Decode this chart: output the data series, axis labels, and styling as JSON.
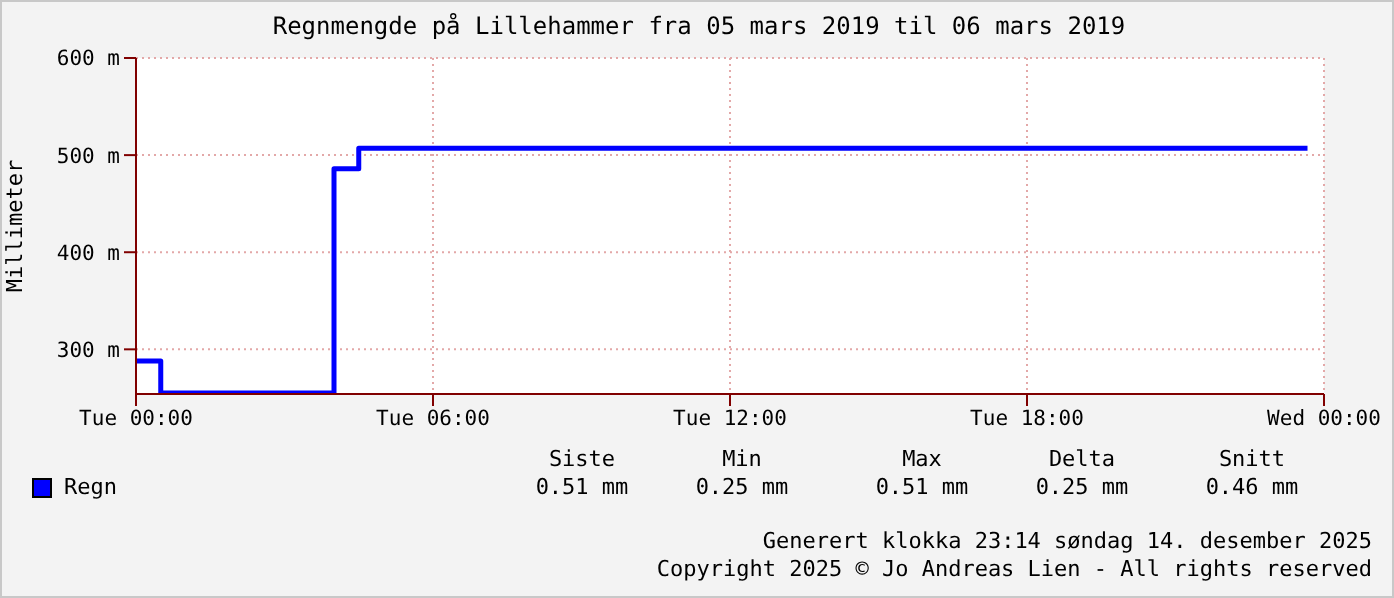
{
  "chart_data": {
    "type": "step",
    "title": "Regnmengde på Lillehammer fra 05 mars 2019 til 06 mars 2019",
    "ylabel": "Millimeter",
    "x": [
      "2019-03-05T00:00",
      "2019-03-05T00:30",
      "2019-03-05T04:00",
      "2019-03-05T04:30",
      "2019-03-05T23:40"
    ],
    "series": [
      {
        "name": "Regn",
        "color": "#0000ff",
        "values": [
          288,
          255,
          486,
          507,
          507
        ]
      }
    ],
    "xlim": [
      "2019-03-05T00:00",
      "2019-03-06T00:00"
    ],
    "xticks": [
      {
        "value": "2019-03-05T00:00",
        "label": "Tue 00:00"
      },
      {
        "value": "2019-03-05T06:00",
        "label": "Tue 06:00"
      },
      {
        "value": "2019-03-05T12:00",
        "label": "Tue 12:00"
      },
      {
        "value": "2019-03-05T18:00",
        "label": "Tue 18:00"
      },
      {
        "value": "2019-03-06T00:00",
        "label": "Wed 00:00"
      }
    ],
    "ylim": [
      254,
      600
    ],
    "yticks": [
      {
        "value": 300,
        "label": "300 m"
      },
      {
        "value": 400,
        "label": "400 m"
      },
      {
        "value": 500,
        "label": "500 m"
      },
      {
        "value": 600,
        "label": "600 m"
      }
    ],
    "grid": true,
    "legend": "bottom",
    "annotations": [
      "Siste",
      "Min",
      "Max",
      "Delta",
      "Snitt",
      "0.51 mm",
      "0.25 mm",
      "0.51 mm",
      "0.25 mm",
      "0.46 mm",
      "Generert klokka 23:14 søndag 14. desember 2025",
      "Copyright 2025 © Jo Andreas Lien - All rights reserved"
    ]
  }
}
